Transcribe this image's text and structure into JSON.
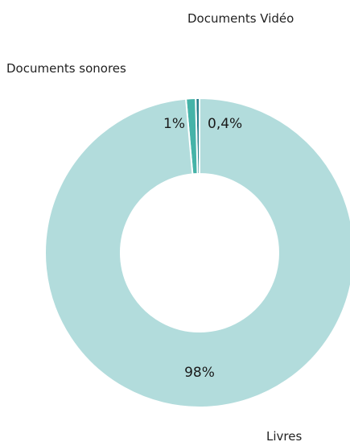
{
  "chart_data": {
    "type": "pie",
    "variant": "donut",
    "categories": [
      "Livres",
      "Documents sonores",
      "Documents Vidéo"
    ],
    "data_labels": [
      "98%",
      "1%",
      "0,4%"
    ],
    "values": [
      98,
      1,
      0.4
    ],
    "colors": [
      "#b2dcdc",
      "#45b3a8",
      "#2a7f8c"
    ],
    "legend": "none"
  }
}
